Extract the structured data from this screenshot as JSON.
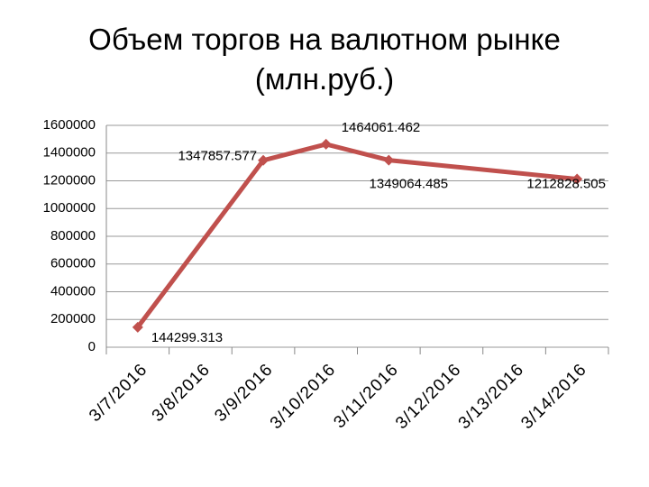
{
  "chart_data": {
    "type": "line",
    "title": "Объем торгов на валютном рынке (млн.руб.)",
    "categories": [
      "3/7/2016",
      "3/8/2016",
      "3/9/2016",
      "3/10/2016",
      "3/11/2016",
      "3/12/2016",
      "3/13/2016",
      "3/14/2016"
    ],
    "x": [
      "3/7/2016",
      "3/9/2016",
      "3/10/2016",
      "3/11/2016",
      "3/14/2016"
    ],
    "values": [
      144299.313,
      1347857.577,
      1464061.462,
      1349064.485,
      1212828.505
    ],
    "color": "#c0504d",
    "ylim": [
      0,
      1600000
    ],
    "yticks": [
      0,
      200000,
      400000,
      600000,
      800000,
      1000000,
      1200000,
      1400000,
      1600000
    ],
    "grid": true
  }
}
